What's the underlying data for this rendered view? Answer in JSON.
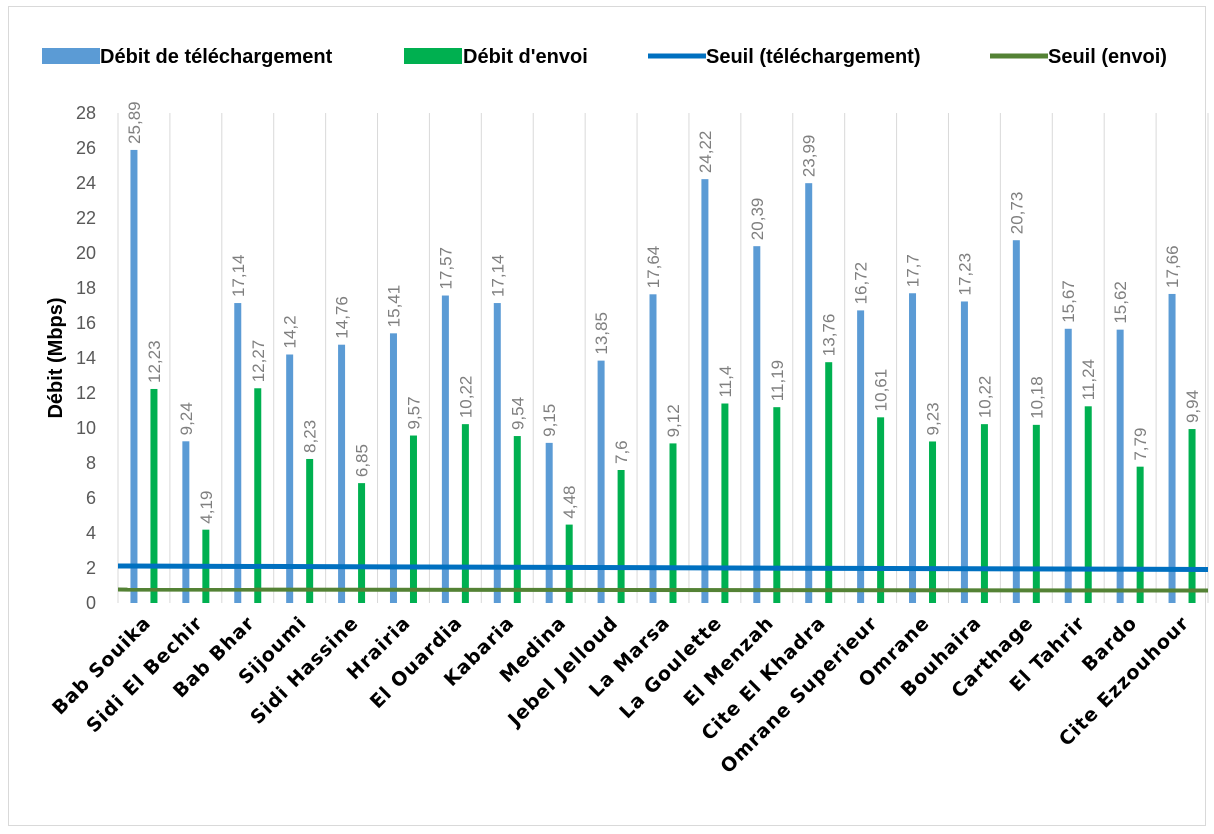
{
  "chart_data": {
    "type": "bar",
    "title": "",
    "xlabel": "",
    "ylabel": "Débit (Mbps)",
    "ylim": [
      0,
      28
    ],
    "yticks": [
      0,
      2,
      4,
      6,
      8,
      10,
      12,
      14,
      16,
      18,
      20,
      22,
      24,
      26,
      28
    ],
    "grid": "vertical",
    "legend_position": "top",
    "categories": [
      "Bab Souika",
      "Sidi El Bechir",
      "Bab Bhar",
      "Sijoumi",
      "Sidi Hassine",
      "Hrairia",
      "El Ouardia",
      "Kabaria",
      "Medina",
      "Jebel Jelloud",
      "La Marsa",
      "La Goulette",
      "El Menzah",
      "Cite El Khadra",
      "Omrane Superieur",
      "Omrane",
      "Bouhaira",
      "Carthage",
      "El Tahrir",
      "Bardo",
      "Cite Ezzouhour"
    ],
    "series": [
      {
        "name": "Débit de téléchargement",
        "kind": "bar",
        "color": "#5b9bd5",
        "values": [
          25.89,
          9.24,
          17.14,
          14.2,
          14.76,
          15.41,
          17.57,
          17.14,
          9.15,
          13.85,
          17.64,
          24.22,
          20.39,
          23.99,
          16.72,
          17.7,
          17.23,
          20.73,
          15.67,
          15.62,
          17.66
        ],
        "labels": [
          "25,89",
          "9,24",
          "17,14",
          "14,2",
          "14,76",
          "15,41",
          "17,57",
          "17,14",
          "9,15",
          "13,85",
          "17,64",
          "24,22",
          "20,39",
          "23,99",
          "16,72",
          "17,7",
          "17,23",
          "20,73",
          "15,67",
          "15,62",
          "17,66"
        ]
      },
      {
        "name": "Débit d'envoi",
        "kind": "bar",
        "color": "#00b050",
        "values": [
          12.23,
          4.19,
          12.27,
          8.23,
          6.85,
          9.57,
          10.22,
          9.54,
          4.48,
          7.6,
          9.12,
          11.4,
          11.19,
          13.76,
          10.61,
          9.23,
          10.22,
          10.18,
          11.24,
          7.79,
          9.94
        ],
        "labels": [
          "12,23",
          "4,19",
          "12,27",
          "8,23",
          "6,85",
          "9,57",
          "10,22",
          "9,54",
          "4,48",
          "7,6",
          "9,12",
          "11,4",
          "11,19",
          "13,76",
          "10,61",
          "9,23",
          "10,22",
          "10,18",
          "11,24",
          "7,79",
          "9,94"
        ]
      },
      {
        "name": "Seuil  (téléchargement)",
        "kind": "line",
        "color": "#0070c0",
        "values": [
          2,
          2,
          2,
          2,
          2,
          2,
          2,
          2,
          2,
          2,
          2,
          2,
          2,
          2,
          2,
          2,
          2,
          2,
          2,
          2,
          2
        ]
      },
      {
        "name": "Seuil  (envoi)",
        "kind": "line",
        "color": "#548235",
        "values": [
          0.768,
          0.768,
          0.768,
          0.768,
          0.768,
          0.768,
          0.768,
          0.768,
          0.768,
          0.768,
          0.768,
          0.768,
          0.768,
          0.768,
          0.768,
          0.768,
          0.768,
          0.768,
          0.768,
          0.768,
          0.768
        ]
      }
    ]
  }
}
